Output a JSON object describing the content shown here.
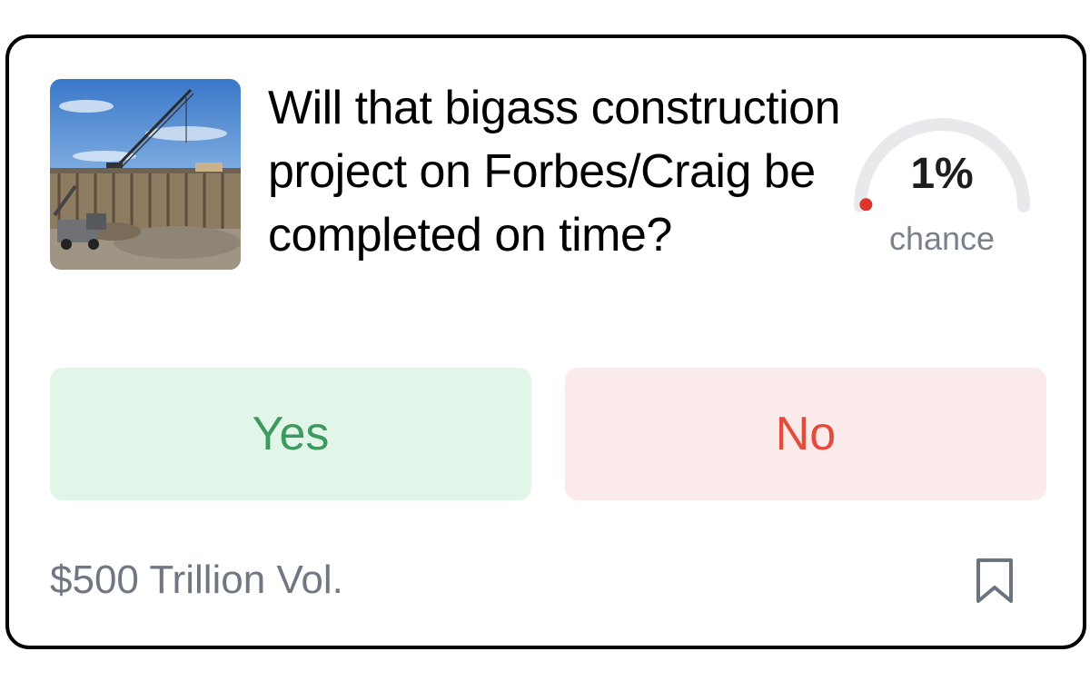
{
  "market": {
    "question": "Will that bigass construction project on Forbes/Craig be completed on time?",
    "chance_value": 1,
    "chance_text": "1%",
    "chance_label": "chance",
    "yes_label": "Yes",
    "no_label": "No",
    "volume": "$500 Trillion Vol."
  },
  "icons": {
    "thumbnail": "construction-site-image",
    "bookmark": "bookmark-icon"
  },
  "colors": {
    "yes_bg": "#e2f5e9",
    "yes_text": "#3d9a5d",
    "no_bg": "#fbeaea",
    "no_text": "#e34b3c",
    "gauge_track": "#e8e9eb",
    "gauge_indicator": "#e0342f",
    "muted_text": "#707782"
  }
}
